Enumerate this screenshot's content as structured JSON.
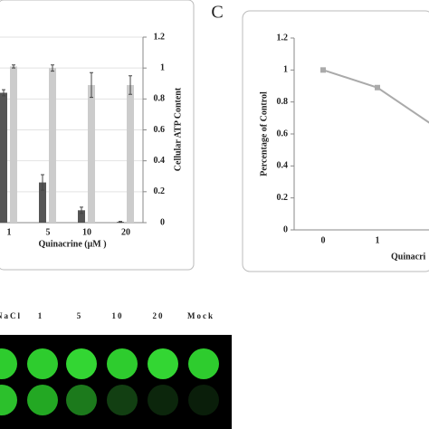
{
  "chart_data": [
    {
      "type": "bar",
      "x_label": "Quinacrine (μM )",
      "y2_label": "Cellular ATP Content",
      "categories": [
        "1",
        "5",
        "10",
        "20"
      ],
      "series": [
        {
          "color": "#555555",
          "values": [
            0.84,
            0.26,
            0.08,
            0.005
          ],
          "errors": [
            0.02,
            0.05,
            0.02,
            0.003
          ]
        },
        {
          "color": "#cccccc",
          "axis": "y2",
          "values": [
            1.01,
            1.0,
            0.89,
            0.89
          ],
          "errors": [
            0.01,
            0.02,
            0.08,
            0.06
          ]
        }
      ],
      "ylim": [
        0,
        1.2
      ],
      "y2lim": [
        0,
        1.2
      ],
      "y2ticks": [
        0,
        0.2,
        0.4,
        0.6,
        0.8,
        1,
        1.2
      ],
      "grid": true
    },
    {
      "type": "line",
      "y_label": "Percentage of Control",
      "x_label": "Quinacri",
      "categories": [
        "0",
        "1",
        null
      ],
      "series": [
        {
          "color": "#aaaaaa",
          "values": [
            1,
            0.89,
            0.66
          ]
        }
      ],
      "ylim": [
        0,
        1.2
      ],
      "yticks": [
        0,
        0.2,
        0.4,
        0.6,
        0.8,
        1,
        1.2
      ],
      "grid": false
    }
  ],
  "panel_label": "C",
  "plate": {
    "labels": [
      "NaCl",
      "1",
      "5",
      "10",
      "20",
      "Mock"
    ]
  }
}
